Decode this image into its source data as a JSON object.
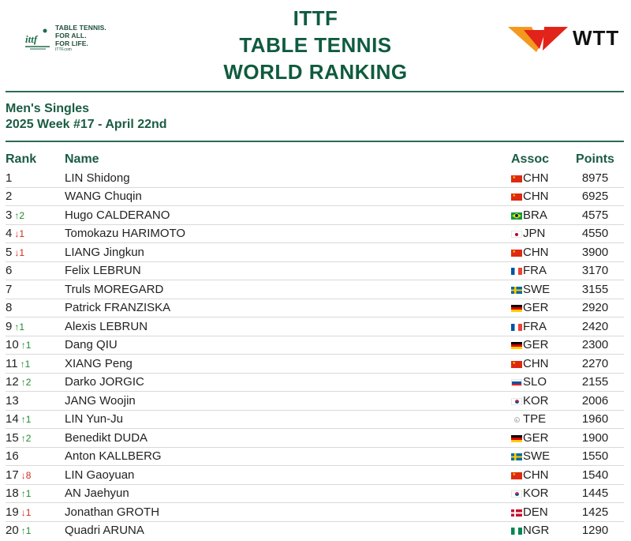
{
  "header": {
    "tagline": [
      "TABLE TENNIS.",
      "FOR ALL.",
      "FOR LIFE."
    ],
    "tagline_url": "ITTF.com",
    "title_lines": [
      "ITTF",
      "TABLE TENNIS",
      "WORLD RANKING"
    ],
    "wtt_text": "WTT"
  },
  "subtitle": {
    "category": "Men's Singles",
    "week": "2025 Week #17 - April 22nd"
  },
  "table": {
    "headers": {
      "rank": "Rank",
      "name": "Name",
      "assoc": "Assoc",
      "points": "Points"
    },
    "rows": [
      {
        "rank": "1",
        "move": "",
        "dir": "",
        "name": "LIN Shidong",
        "assoc": "CHN",
        "points": "8975"
      },
      {
        "rank": "2",
        "move": "",
        "dir": "",
        "name": "WANG Chuqin",
        "assoc": "CHN",
        "points": "6925"
      },
      {
        "rank": "3",
        "move": "↑2",
        "dir": "up",
        "name": "Hugo CALDERANO",
        "assoc": "BRA",
        "points": "4575"
      },
      {
        "rank": "4",
        "move": "↓1",
        "dir": "down",
        "name": "Tomokazu HARIMOTO",
        "assoc": "JPN",
        "points": "4550"
      },
      {
        "rank": "5",
        "move": "↓1",
        "dir": "down",
        "name": "LIANG Jingkun",
        "assoc": "CHN",
        "points": "3900"
      },
      {
        "rank": "6",
        "move": "",
        "dir": "",
        "name": "Felix LEBRUN",
        "assoc": "FRA",
        "points": "3170"
      },
      {
        "rank": "7",
        "move": "",
        "dir": "",
        "name": "Truls MOREGARD",
        "assoc": "SWE",
        "points": "3155"
      },
      {
        "rank": "8",
        "move": "",
        "dir": "",
        "name": "Patrick FRANZISKA",
        "assoc": "GER",
        "points": "2920"
      },
      {
        "rank": "9",
        "move": "↑1",
        "dir": "up",
        "name": "Alexis LEBRUN",
        "assoc": "FRA",
        "points": "2420"
      },
      {
        "rank": "10",
        "move": "↑1",
        "dir": "up",
        "name": "Dang QIU",
        "assoc": "GER",
        "points": "2300"
      },
      {
        "rank": "11",
        "move": "↑1",
        "dir": "up",
        "name": "XIANG Peng",
        "assoc": "CHN",
        "points": "2270"
      },
      {
        "rank": "12",
        "move": "↑2",
        "dir": "up",
        "name": "Darko JORGIC",
        "assoc": "SLO",
        "points": "2155"
      },
      {
        "rank": "13",
        "move": "",
        "dir": "",
        "name": "JANG Woojin",
        "assoc": "KOR",
        "points": "2006"
      },
      {
        "rank": "14",
        "move": "↑1",
        "dir": "up",
        "name": "LIN Yun-Ju",
        "assoc": "TPE",
        "points": "1960"
      },
      {
        "rank": "15",
        "move": "↑2",
        "dir": "up",
        "name": "Benedikt DUDA",
        "assoc": "GER",
        "points": "1900"
      },
      {
        "rank": "16",
        "move": "",
        "dir": "",
        "name": "Anton KALLBERG",
        "assoc": "SWE",
        "points": "1550"
      },
      {
        "rank": "17",
        "move": "↓8",
        "dir": "down",
        "name": "LIN Gaoyuan",
        "assoc": "CHN",
        "points": "1540"
      },
      {
        "rank": "18",
        "move": "↑1",
        "dir": "up",
        "name": "AN Jaehyun",
        "assoc": "KOR",
        "points": "1445"
      },
      {
        "rank": "19",
        "move": "↓1",
        "dir": "down",
        "name": "Jonathan GROTH",
        "assoc": "DEN",
        "points": "1425"
      },
      {
        "rank": "20",
        "move": "↑1",
        "dir": "up",
        "name": "Quadri ARUNA",
        "assoc": "NGR",
        "points": "1290"
      }
    ]
  },
  "colors": {
    "title_green": "#0f5b3f",
    "up": "#1e8a2e",
    "down": "#d0281b",
    "wtt_red": "#e2231a",
    "wtt_orange": "#f39a1e"
  }
}
